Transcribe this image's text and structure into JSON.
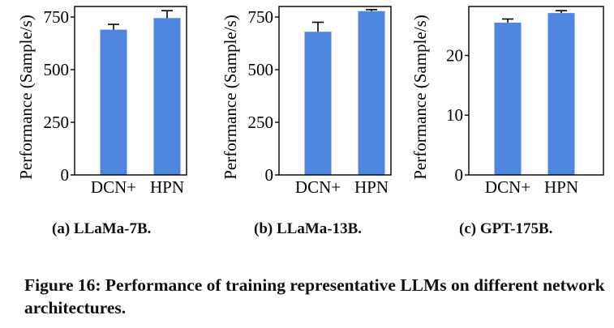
{
  "colors": {
    "bar": "#4f86e0",
    "axis": "#000000",
    "text": "#000000"
  },
  "chart_data": [
    {
      "type": "bar",
      "caption": "(a) LLaMa-7B.",
      "categories": [
        "DCN+",
        "HPN"
      ],
      "values": [
        690,
        745
      ],
      "errors": [
        25,
        35
      ],
      "ylabel": "Performance (Sample/s)",
      "ylim": [
        0,
        800
      ],
      "yticks": [
        0,
        250,
        500,
        750
      ],
      "ytick_labels": [
        "0",
        "250",
        "500",
        "750"
      ],
      "grid": false
    },
    {
      "type": "bar",
      "caption": "(b) LLaMa-13B.",
      "categories": [
        "DCN+",
        "HPN"
      ],
      "values": [
        680,
        778
      ],
      "errors": [
        45,
        7
      ],
      "ylabel": "Performance (Sample/s)",
      "ylim": [
        0,
        800
      ],
      "yticks": [
        0,
        250,
        500,
        750
      ],
      "ytick_labels": [
        "0",
        "250",
        "500",
        "750"
      ],
      "grid": false
    },
    {
      "type": "bar",
      "caption": "(c) GPT-175B.",
      "categories": [
        "DCN+",
        "HPN"
      ],
      "values": [
        25.5,
        27.1
      ],
      "errors": [
        0.6,
        0.4
      ],
      "ylabel": "Performance (Sample/s)",
      "ylim": [
        0,
        28.2
      ],
      "yticks": [
        0,
        10,
        20
      ],
      "ytick_labels": [
        "0",
        "10",
        "20"
      ],
      "grid": false
    }
  ],
  "figure": {
    "caption": "Figure 16: Performance of training representative LLMs on different network architectures."
  }
}
